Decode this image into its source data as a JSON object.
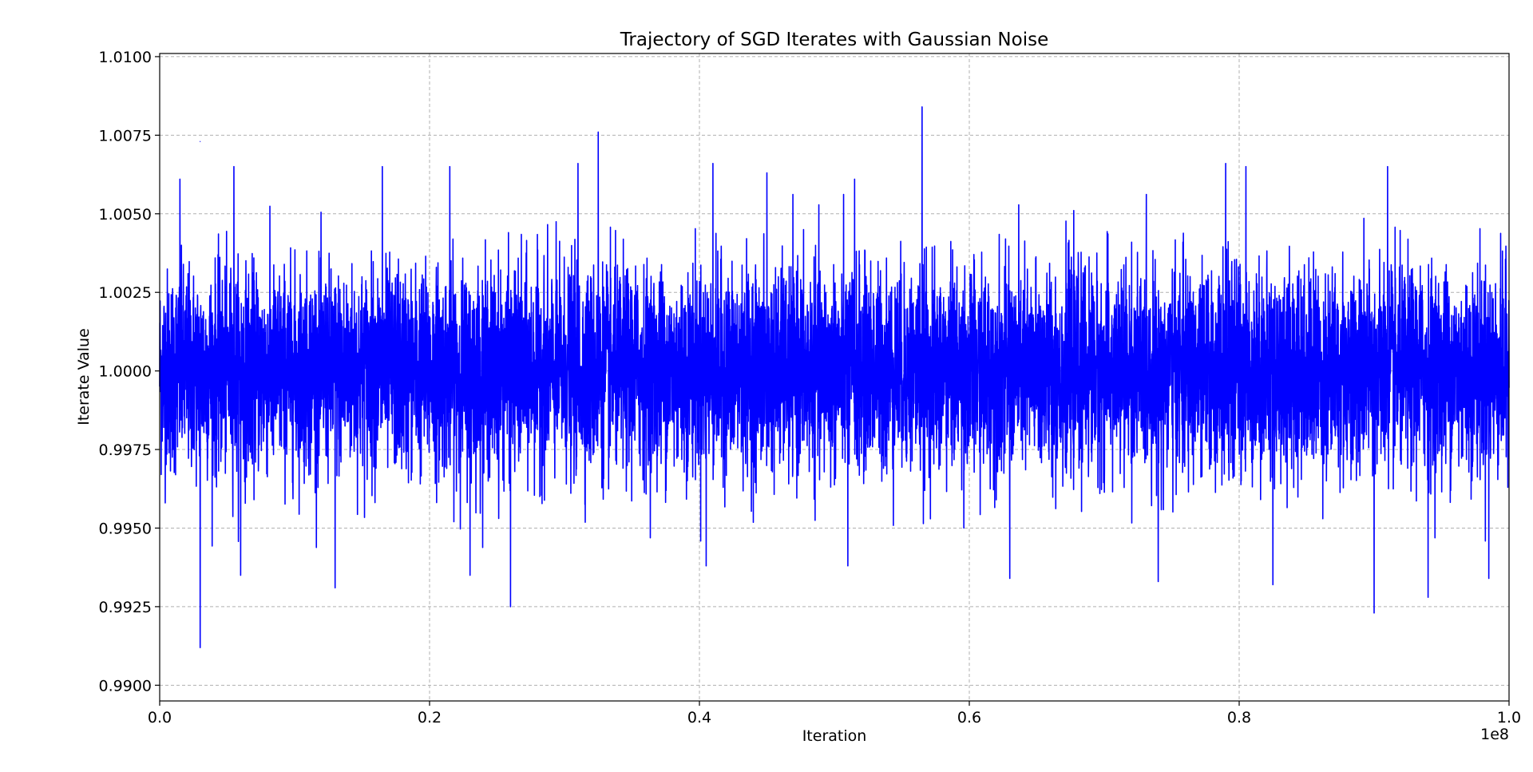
{
  "chart_data": {
    "type": "line",
    "title": "Trajectory of SGD Iterates with Gaussian Noise",
    "xlabel": "Iteration",
    "ylabel": "Iterate Value",
    "x_offset_label": "1e8",
    "xlim": [
      0,
      100000000
    ],
    "ylim": [
      0.9895,
      1.0101
    ],
    "x_ticks": [
      {
        "value": 0,
        "label": "0.0"
      },
      {
        "value": 20000000,
        "label": "0.2"
      },
      {
        "value": 40000000,
        "label": "0.4"
      },
      {
        "value": 60000000,
        "label": "0.6"
      },
      {
        "value": 80000000,
        "label": "0.8"
      },
      {
        "value": 100000000,
        "label": "1.0"
      }
    ],
    "y_ticks": [
      {
        "value": 0.99,
        "label": "0.9900"
      },
      {
        "value": 0.9925,
        "label": "0.9925"
      },
      {
        "value": 0.995,
        "label": "0.9950"
      },
      {
        "value": 0.9975,
        "label": "0.9975"
      },
      {
        "value": 1.0,
        "label": "1.0000"
      },
      {
        "value": 1.0025,
        "label": "1.0025"
      },
      {
        "value": 1.005,
        "label": "1.0050"
      },
      {
        "value": 1.0075,
        "label": "1.0075"
      },
      {
        "value": 1.01,
        "label": "1.0100"
      }
    ],
    "grid": true,
    "series": [
      {
        "color": "#0000ff",
        "summary": {
          "mean": 1.0,
          "typical_range": [
            0.9968,
            1.0032
          ]
        },
        "extremes": [
          {
            "x": 3000000,
            "y": 1.0073
          },
          {
            "x": 3000000,
            "y": 0.9912
          },
          {
            "x": 26000000,
            "y": 0.9925
          },
          {
            "x": 32500000,
            "y": 1.0076
          },
          {
            "x": 56500000,
            "y": 1.0084
          },
          {
            "x": 90000000,
            "y": 0.9923
          },
          {
            "x": 94000000,
            "y": 0.9928
          },
          {
            "x": 13000000,
            "y": 0.9931
          },
          {
            "x": 74000000,
            "y": 0.9933
          },
          {
            "x": 82500000,
            "y": 0.9932
          },
          {
            "x": 79000000,
            "y": 1.0066
          },
          {
            "x": 80500000,
            "y": 1.0065
          },
          {
            "x": 1500000,
            "y": 1.0061
          },
          {
            "x": 5500000,
            "y": 1.0065
          },
          {
            "x": 16500000,
            "y": 1.0065
          },
          {
            "x": 21500000,
            "y": 1.0065
          },
          {
            "x": 31000000,
            "y": 1.0066
          },
          {
            "x": 41000000,
            "y": 1.0066
          },
          {
            "x": 45000000,
            "y": 1.0063
          },
          {
            "x": 51500000,
            "y": 1.0061
          },
          {
            "x": 91000000,
            "y": 1.0065
          },
          {
            "x": 6000000,
            "y": 0.9935
          },
          {
            "x": 23000000,
            "y": 0.9935
          },
          {
            "x": 40500000,
            "y": 0.9938
          },
          {
            "x": 51000000,
            "y": 0.9938
          },
          {
            "x": 63000000,
            "y": 0.9934
          },
          {
            "x": 98500000,
            "y": 0.9934
          }
        ]
      }
    ]
  }
}
